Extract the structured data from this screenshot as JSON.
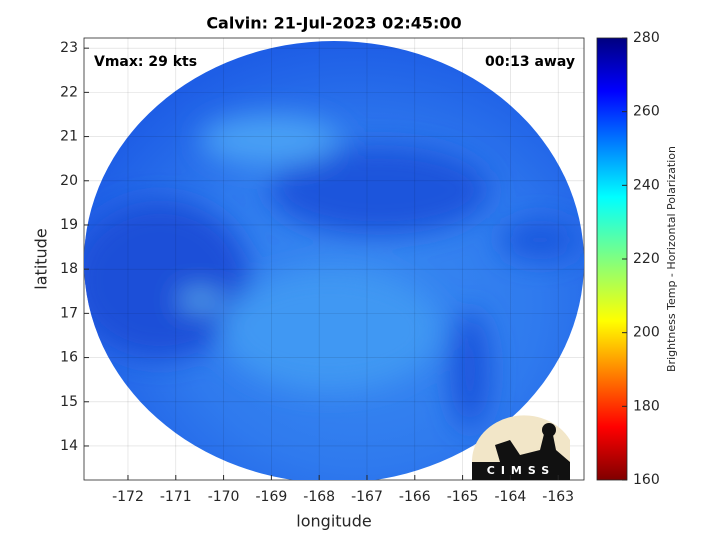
{
  "chart_data": {
    "type": "map",
    "title": "Calvin: 21-Jul-2023 02:45:00",
    "annotations": [
      "Vmax: 29 kts",
      "00:13 away"
    ],
    "x_label": "longitude",
    "y_label": "latitude",
    "xlim": [
      -172.92,
      -162.46
    ],
    "xticks": [
      -172,
      -171,
      -170,
      -169,
      -168,
      -167,
      -166,
      -165,
      -164,
      -163
    ],
    "ylim": [
      13.23,
      23.23
    ],
    "yticks": [
      14,
      15,
      16,
      17,
      18,
      19,
      20,
      21,
      22,
      23
    ],
    "grid": true,
    "colorbar": {
      "label": "Brightness Temp - Horizontal Polarization",
      "lim": [
        160,
        280
      ],
      "ticks": [
        160,
        180,
        200,
        220,
        240,
        260,
        280
      ]
    },
    "logo": "CIMSS"
  }
}
